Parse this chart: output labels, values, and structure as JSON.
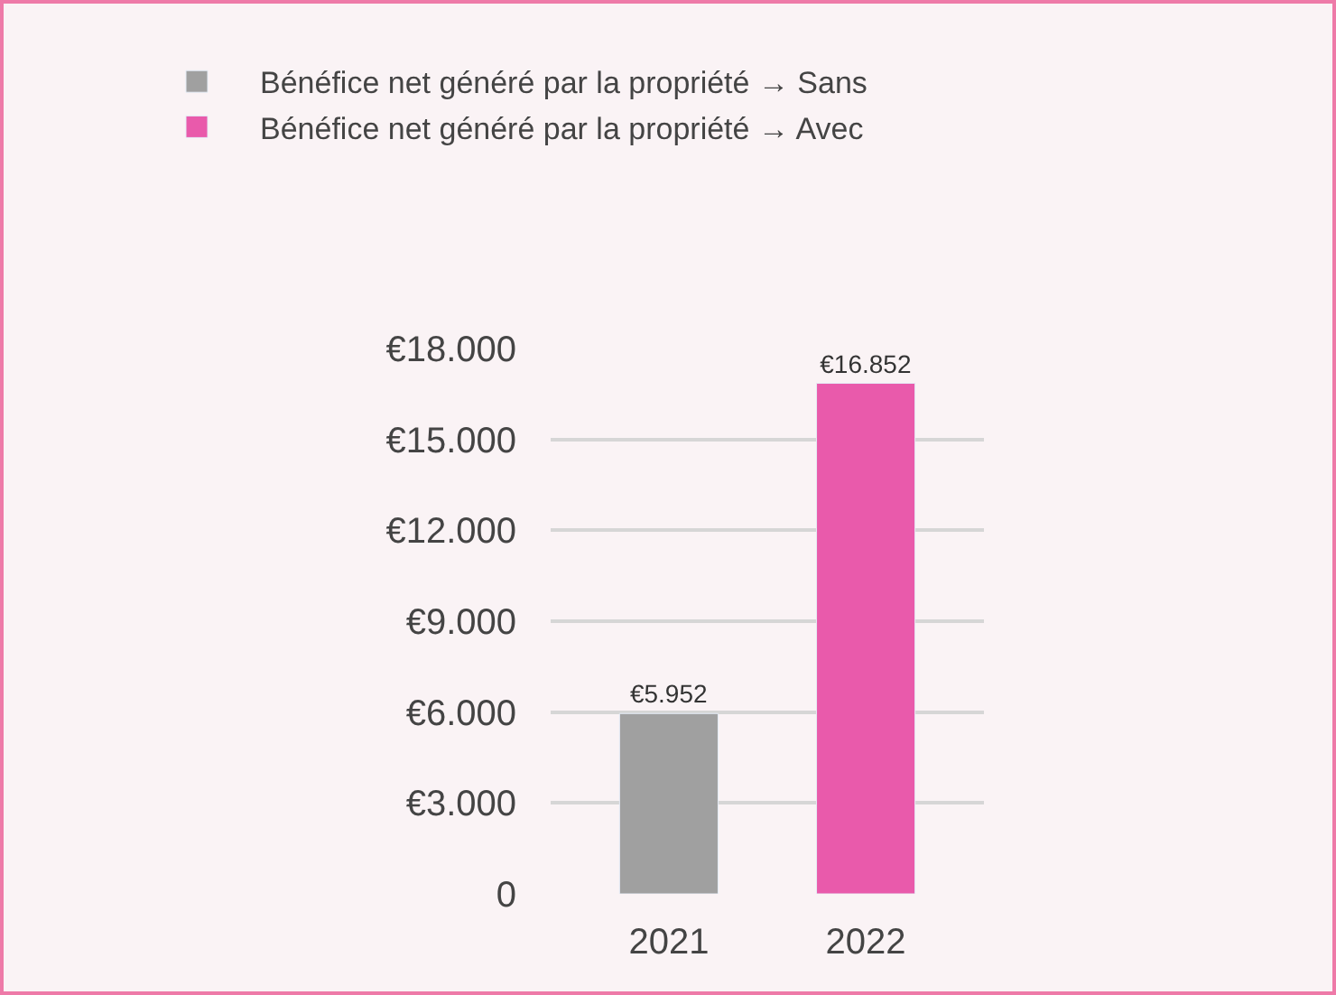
{
  "chart_data": {
    "type": "bar",
    "categories": [
      "2021",
      "2022"
    ],
    "series": [
      {
        "name": "Bénéfice net généré par la propriété → Sans",
        "color": "#a0a0a0",
        "values": [
          5952,
          null
        ],
        "value_labels": [
          "€5.952",
          null
        ]
      },
      {
        "name": "Bénéfice net généré par la propriété → Avec",
        "color": "#e95aab",
        "values": [
          null,
          16852
        ],
        "value_labels": [
          null,
          "€16.852"
        ]
      }
    ],
    "ylim": [
      0,
      18000
    ],
    "yticks": [
      0,
      {
        "value": 3000,
        "label": "€3.000"
      },
      {
        "value": 6000,
        "label": "€6.000"
      },
      {
        "value": 9000,
        "label": "€9.000"
      },
      {
        "value": 12000,
        "label": "€12.000"
      },
      {
        "value": 15000,
        "label": "€15.000"
      },
      {
        "value": 18000,
        "label": "€18.000"
      }
    ],
    "grid": "y",
    "legend": "top"
  }
}
